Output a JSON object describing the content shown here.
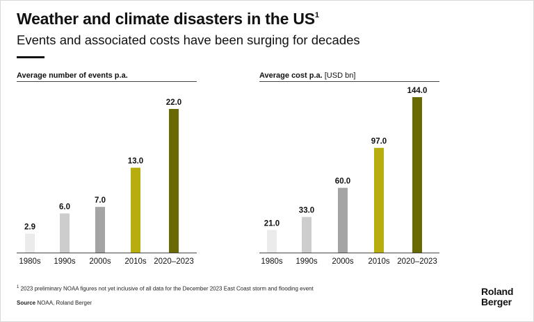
{
  "title": "Weather and climate disasters in the US",
  "title_sup": "1",
  "subtitle": "Events and associated costs have been surging for decades",
  "chart_data": [
    {
      "type": "bar",
      "title": "Average number of events p.a.",
      "unit": "",
      "categories": [
        "1980s",
        "1990s",
        "2000s",
        "2010s",
        "2020–2023"
      ],
      "values": [
        2.9,
        6.0,
        7.0,
        13.0,
        22.0
      ],
      "value_labels": [
        "2.9",
        "6.0",
        "7.0",
        "13.0",
        "22.0"
      ],
      "colors": [
        "#ebebeb",
        "#cdcdcd",
        "#a4a4a4",
        "#b8ad0e",
        "#6a6a04"
      ],
      "ylim": [
        0,
        22
      ]
    },
    {
      "type": "bar",
      "title": "Average cost p.a.",
      "unit": "[USD bn]",
      "categories": [
        "1980s",
        "1990s",
        "2000s",
        "2010s",
        "2020–2023"
      ],
      "values": [
        21.0,
        33.0,
        60.0,
        97.0,
        144.0
      ],
      "value_labels": [
        "21.0",
        "33.0",
        "60.0",
        "97.0",
        "144.0"
      ],
      "colors": [
        "#ebebeb",
        "#cdcdcd",
        "#a4a4a4",
        "#b8ad0e",
        "#6a6a04"
      ],
      "ylim": [
        0,
        144
      ]
    }
  ],
  "footnote_sup": "1",
  "footnote": "2023 preliminary NOAA figures not yet inclusive of all data for the December 2023 East Coast storm and flooding event",
  "source_label": "Source",
  "source_text": "NOAA, Roland Berger",
  "logo_line1": "Roland",
  "logo_line2": "Berger"
}
